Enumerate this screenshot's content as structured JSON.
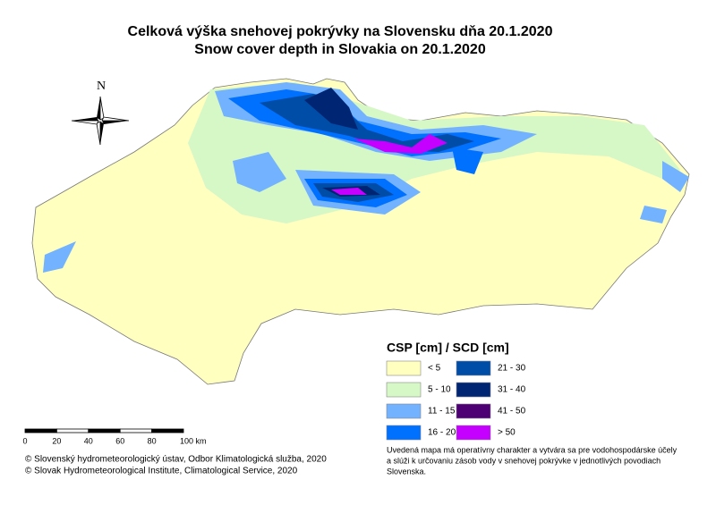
{
  "title": {
    "line1": "Celková výška snehovej pokrývky na Slovensku dňa 20.1.2020",
    "line2": "Snow cover depth in Slovakia on 20.1.2020"
  },
  "north": "N",
  "legend": {
    "title": "CSP [cm] / SCD [cm]",
    "items": [
      {
        "label": "< 5",
        "color": "#ffffc0"
      },
      {
        "label": "5 - 10",
        "color": "#d6f7c6"
      },
      {
        "label": "11 - 15",
        "color": "#73b2ff"
      },
      {
        "label": "16 - 20",
        "color": "#0070ff"
      },
      {
        "label": "21 - 30",
        "color": "#004da8"
      },
      {
        "label": "31 - 40",
        "color": "#002673"
      },
      {
        "label": "41 - 50",
        "color": "#4c0073"
      },
      {
        "label": "> 50",
        "color": "#c500ff"
      }
    ]
  },
  "scale": {
    "ticks": [
      "0",
      "20",
      "40",
      "60",
      "80",
      "100 km"
    ]
  },
  "credits": [
    "© Slovenský hydrometeorologický ústav, Odbor Klimatologická služba, 2020",
    "© Slovak Hydrometeorological Institute, Climatological Service, 2020"
  ],
  "note": [
    "Uvedená mapa má operatívny charakter a vytvára sa pre vodohospodárske účely",
    " a slúži k určovaniu zásob vody v snehovej pokrývke v jednotlivých povodiach",
    "Slovenska."
  ]
}
